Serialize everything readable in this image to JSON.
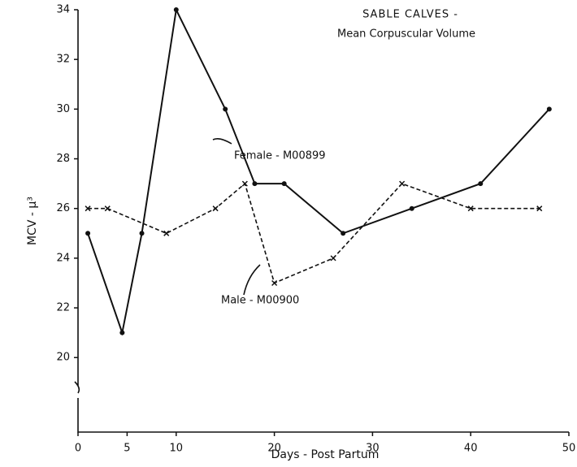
{
  "chart_data": {
    "type": "line",
    "title": "SABLE CALVES -",
    "subtitle": "Mean Corpuscular Volume",
    "x_label": "Days - Post Partum",
    "y_label": "MCV - µ³",
    "xlim": [
      0,
      50
    ],
    "xticks": [
      0,
      5,
      10,
      20,
      30,
      40,
      50
    ],
    "ylim": [
      17,
      34
    ],
    "yticks": [
      20,
      22,
      24,
      26,
      28,
      30,
      32,
      34
    ],
    "series": [
      {
        "name": "Female - M00899",
        "color": "#111111",
        "marker": "dot",
        "dashed": false,
        "x": [
          1,
          4.5,
          6.5,
          10,
          15,
          18,
          21,
          27,
          34,
          41,
          48
        ],
        "values": [
          25,
          21,
          25,
          34,
          30,
          27,
          27,
          25,
          26,
          27,
          30
        ]
      },
      {
        "name": "Male - M00900",
        "color": "#111111",
        "marker": "x",
        "dashed": true,
        "x": [
          1,
          3,
          9,
          14,
          17,
          20,
          26,
          33,
          40,
          47
        ],
        "values": [
          26,
          26,
          25,
          26,
          27,
          23,
          24,
          27,
          26,
          26
        ]
      }
    ]
  }
}
